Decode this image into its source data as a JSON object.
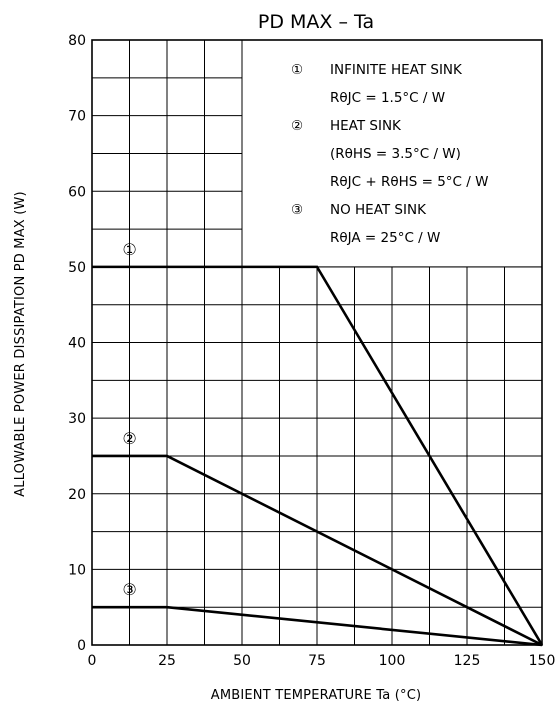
{
  "chart_data": {
    "type": "line",
    "title": "PD MAX – Ta",
    "xlabel": "AMBIENT TEMPERATURE   Ta   (°C)",
    "ylabel": "ALLOWABLE POWER DISSIPATION   PD MAX   (W)",
    "xlim": [
      0,
      150
    ],
    "ylim": [
      0,
      80
    ],
    "x_ticks": [
      0,
      25,
      50,
      75,
      100,
      125,
      150
    ],
    "y_ticks": [
      0,
      10,
      20,
      30,
      40,
      50,
      60,
      70,
      80
    ],
    "grid": true,
    "series": [
      {
        "marker": "①",
        "x": [
          0,
          75,
          150
        ],
        "y": [
          50,
          50,
          0
        ]
      },
      {
        "marker": "②",
        "x": [
          0,
          25,
          150
        ],
        "y": [
          25,
          25,
          0
        ]
      },
      {
        "marker": "③",
        "x": [
          0,
          25,
          150
        ],
        "y": [
          5,
          5,
          0
        ]
      }
    ],
    "legend": {
      "placement": "top-right",
      "lines": [
        {
          "num": "①",
          "text": "INFINITE HEAT SINK"
        },
        {
          "num": "",
          "text": "RθJC = 1.5°C / W"
        },
        {
          "num": "②",
          "text": "HEAT SINK"
        },
        {
          "num": "",
          "text": "(RθHS = 3.5°C / W)"
        },
        {
          "num": "",
          "text": "RθJC + RθHS = 5°C / W"
        },
        {
          "num": "③",
          "text": "NO HEAT SINK"
        },
        {
          "num": "",
          "text": "RθJA = 25°C / W"
        }
      ]
    }
  }
}
